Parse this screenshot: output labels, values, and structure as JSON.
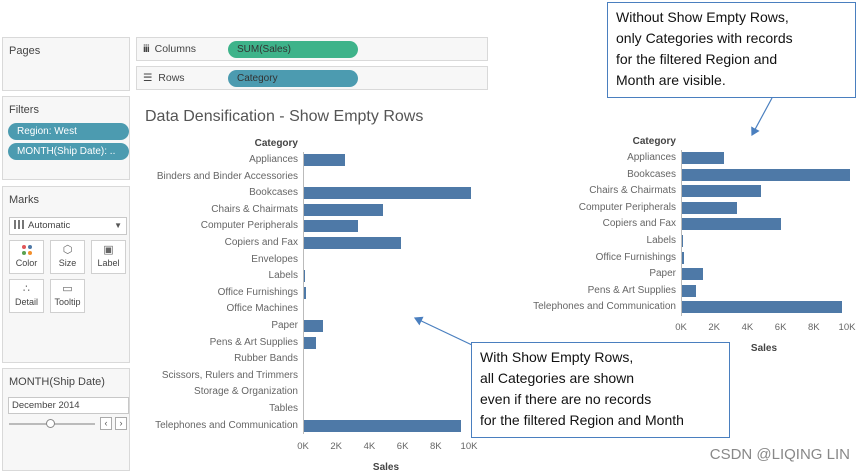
{
  "pages": {
    "title": "Pages"
  },
  "shelves": {
    "columns": {
      "label": "Columns",
      "pill": "SUM(Sales)",
      "pill_color": "#3eb38a"
    },
    "rows": {
      "label": "Rows",
      "pill": "Category",
      "pill_color": "#4c9bb0"
    }
  },
  "filters": {
    "title": "Filters",
    "items": [
      "Region: West",
      "MONTH(Ship Date): .."
    ]
  },
  "marks": {
    "title": "Marks",
    "type": "Automatic",
    "buttons": [
      "Color",
      "Size",
      "Label",
      "Detail",
      "Tooltip"
    ]
  },
  "quick_filter": {
    "title": "MONTH(Ship Date)",
    "value": "December 2014"
  },
  "chart_title": "Data Densification - Show Empty Rows",
  "callouts": {
    "top": "Without Show Empty Rows,\nonly Categories with records\nfor the filtered Region and\nMonth are visible.",
    "bottom": "With Show Empty Rows,\nall Categories are shown\neven if there are no records\nfor the filtered Region and Month"
  },
  "watermark": "CSDN @LIQING LIN",
  "chart_data": [
    {
      "type": "bar",
      "orientation": "horizontal",
      "title": "Data Densification - Show Empty Rows",
      "row_header": "Category",
      "xlabel": "Sales",
      "xlim": [
        0,
        10000
      ],
      "ticks": [
        "0K",
        "2K",
        "4K",
        "6K",
        "8K",
        "10K"
      ],
      "categories": [
        "Appliances",
        "Binders and Binder Accessories",
        "Bookcases",
        "Chairs & Chairmats",
        "Computer Peripherals",
        "Copiers and Fax",
        "Envelopes",
        "Labels",
        "Office Furnishings",
        "Office Machines",
        "Paper",
        "Pens & Art Supplies",
        "Rubber Bands",
        "Scissors, Rulers and Trimmers",
        "Storage & Organization",
        "Tables",
        "Telephones and Communication"
      ],
      "values": [
        2500,
        0,
        10100,
        4800,
        3300,
        5900,
        0,
        150,
        200,
        0,
        1200,
        800,
        0,
        0,
        0,
        0,
        9500
      ],
      "color": "#4e79a7"
    },
    {
      "type": "bar",
      "orientation": "horizontal",
      "row_header": "Category",
      "xlabel": "Sales",
      "xlim": [
        0,
        10000
      ],
      "ticks": [
        "0K",
        "2K",
        "4K",
        "6K",
        "8K",
        "10K"
      ],
      "categories": [
        "Appliances",
        "Bookcases",
        "Chairs & Chairmats",
        "Computer Peripherals",
        "Copiers and Fax",
        "Labels",
        "Office Furnishings",
        "Paper",
        "Pens & Art Supplies",
        "Telephones and Communication"
      ],
      "values": [
        2600,
        10200,
        4800,
        3400,
        6000,
        150,
        200,
        1300,
        900,
        9700
      ],
      "color": "#4e79a7"
    }
  ]
}
